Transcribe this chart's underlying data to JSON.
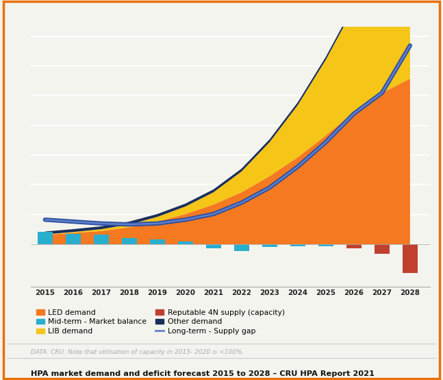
{
  "years": [
    2015,
    2016,
    2017,
    2018,
    2019,
    2020,
    2021,
    2022,
    2023,
    2024,
    2025,
    2026,
    2027,
    2028
  ],
  "led_demand": [
    10,
    12,
    14,
    18,
    24,
    32,
    42,
    55,
    72,
    92,
    115,
    140,
    160,
    175
  ],
  "lib_demand": [
    0.5,
    1,
    2,
    3,
    5,
    8,
    13,
    22,
    36,
    55,
    80,
    110,
    145,
    185
  ],
  "other_demand": [
    3,
    3,
    3,
    3,
    3,
    3,
    3,
    3,
    3,
    3,
    3,
    3,
    3,
    3
  ],
  "mid_term_market_balance": [
    13,
    11,
    10,
    7,
    5,
    3,
    -4,
    -7,
    -3,
    -2,
    -2,
    -4,
    -6,
    -7
  ],
  "reputable_4n_supply": [
    0,
    0,
    0,
    0,
    0,
    0,
    0,
    0,
    0,
    0,
    0,
    -4,
    -10,
    -30
  ],
  "long_term_supply_gap": [
    26,
    24,
    22,
    21,
    22,
    26,
    32,
    44,
    60,
    82,
    108,
    138,
    160,
    210
  ],
  "colors": {
    "led_demand": "#F47920",
    "lib_demand": "#F5C518",
    "other_demand": "#1A2E5A",
    "mid_term_market_balance": "#29AECE",
    "reputable_4n_supply": "#C04030",
    "long_term_supply_gap": "#2E4FA0",
    "long_term_supply_gap_light": "#6080C8",
    "background": "#F4F4EE",
    "border": "#E8700A",
    "grid": "#FFFFFF"
  },
  "title": "HPA market demand and deficit forecast 2015 to 2028 – CRU HPA Report 2021",
  "note": "DATA: CRU. Note that utilisation of capacity in 2015- 2020 is <100%.",
  "ylim": [
    -45,
    230
  ]
}
